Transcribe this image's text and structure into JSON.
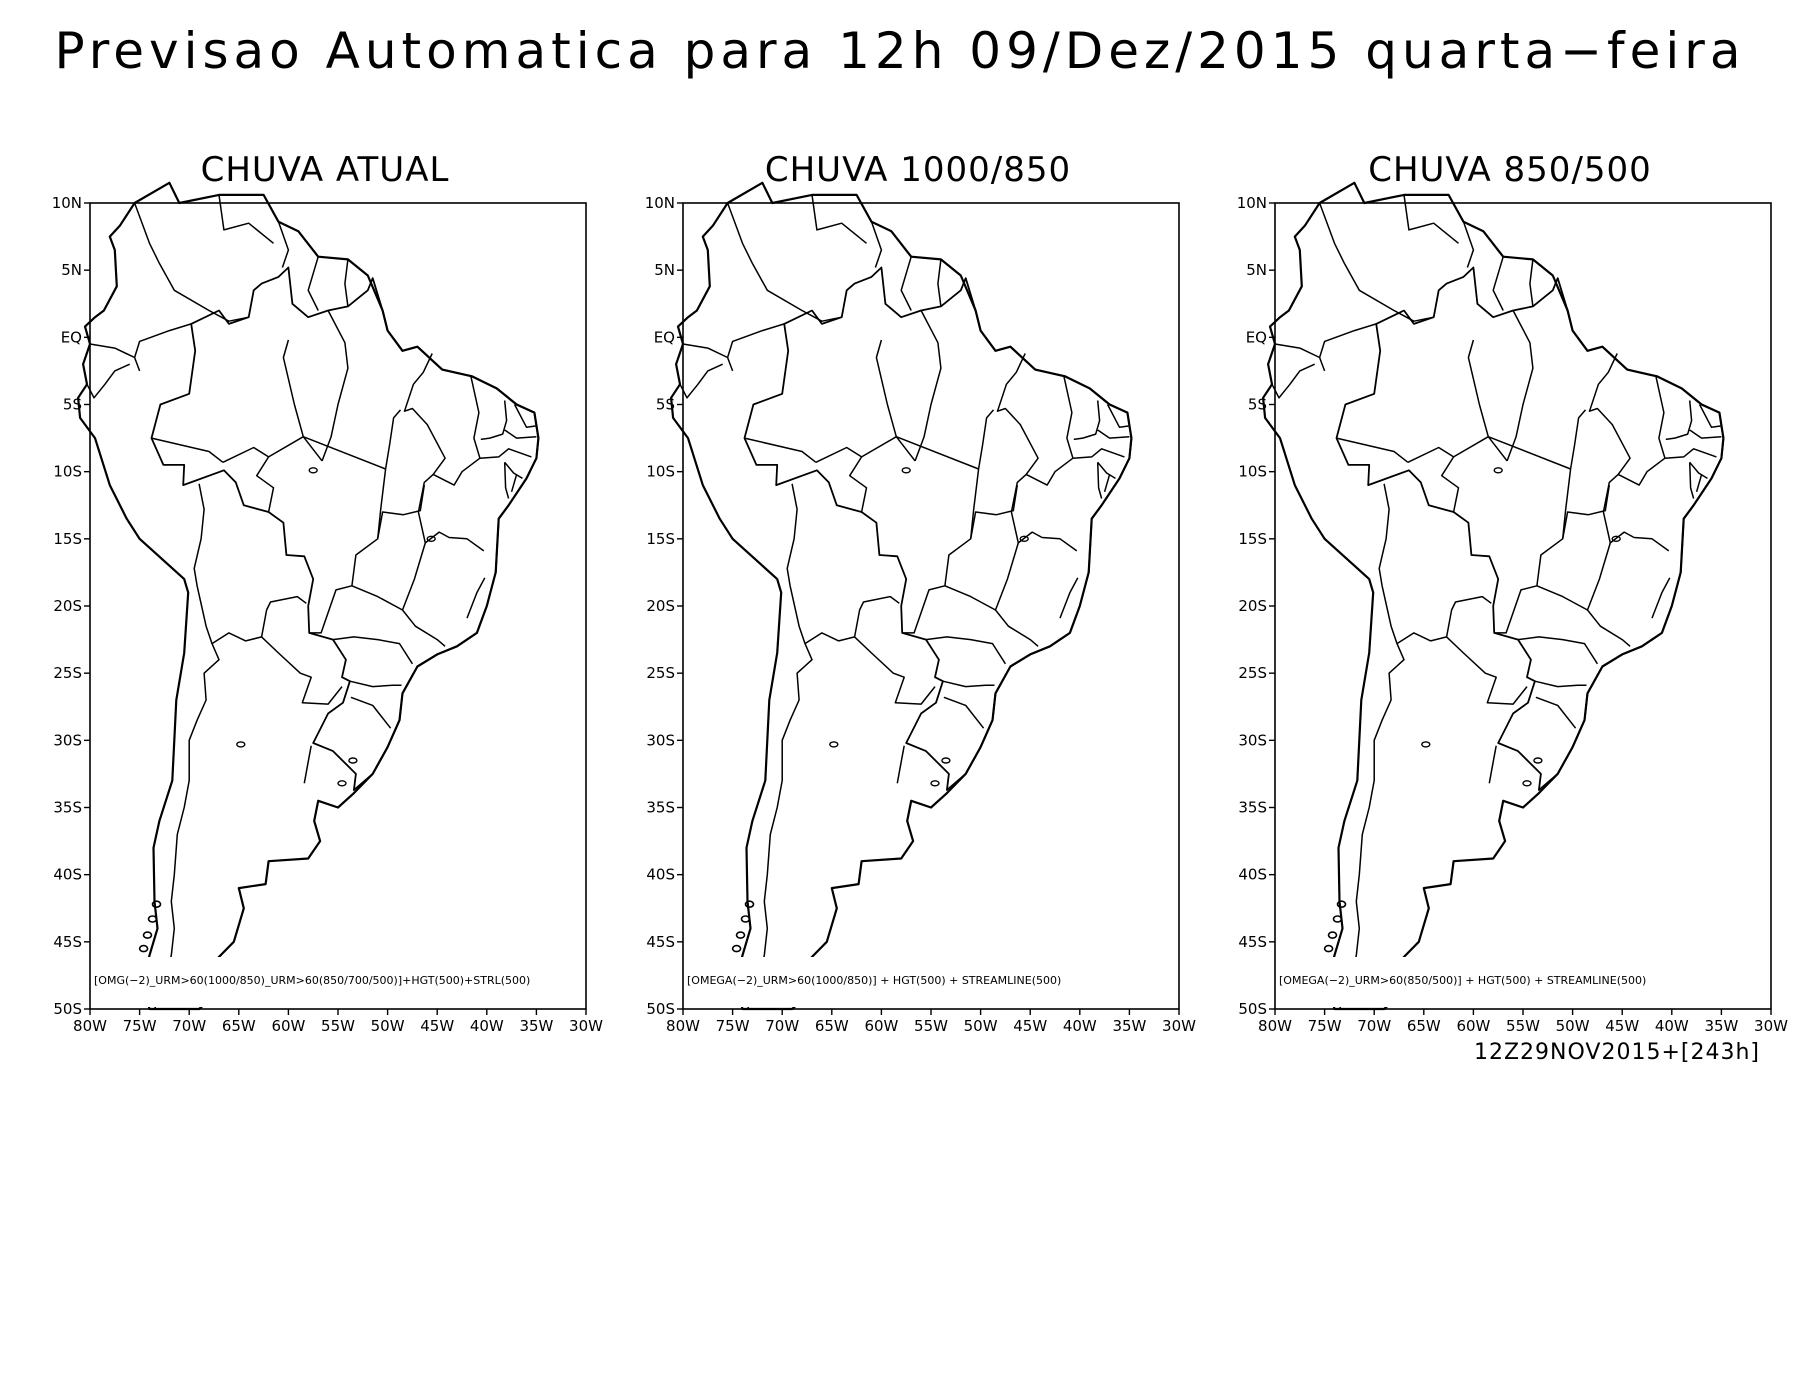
{
  "title": "Previsao Automatica para 12h 09/Dez/2015 quarta−feira",
  "panels": [
    {
      "title": "CHUVA ATUAL",
      "legend": "[OMG(−2)_URM>60(1000/850)_URM>60(850/700/500)]+HGT(500)+STRL(500)"
    },
    {
      "title": "CHUVA 1000/850",
      "legend": "[OMEGA(−2)_URM>60(1000/850)] + HGT(500) + STREAMLINE(500)"
    },
    {
      "title": "CHUVA 850/500",
      "legend": "[OMEGA(−2)_URM>60(850/500)] + HGT(500) + STREAMLINE(500)"
    }
  ],
  "axes": {
    "lat_labels": [
      "10N",
      "5N",
      "EQ",
      "5S",
      "10S",
      "15S",
      "20S",
      "25S",
      "30S",
      "35S",
      "40S",
      "45S",
      "50S"
    ],
    "lon_labels": [
      "80W",
      "75W",
      "70W",
      "65W",
      "60W",
      "55W",
      "50W",
      "45W",
      "40W",
      "35W",
      "30W"
    ],
    "lat_range": [
      -50,
      10
    ],
    "lon_range": [
      -80,
      -30
    ]
  },
  "init_time": "12Z29NOV2015+[243h]"
}
